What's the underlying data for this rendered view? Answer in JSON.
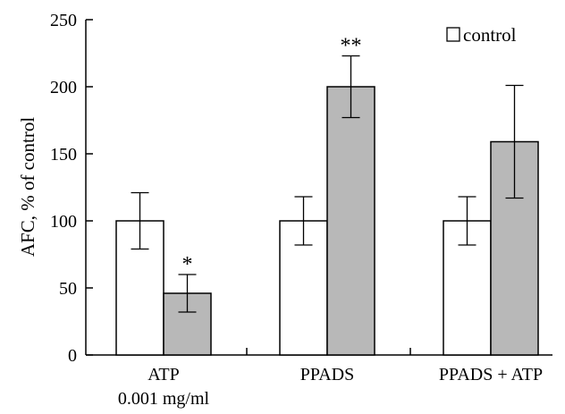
{
  "chart_data": {
    "type": "bar",
    "title": "",
    "xlabel": "",
    "ylabel": "AFC, % of control",
    "ylim": [
      0,
      250
    ],
    "yticks": [
      0,
      50,
      100,
      150,
      200,
      250
    ],
    "categories": [
      [
        "ATP",
        "0.001 mg/ml"
      ],
      [
        "PPADS"
      ],
      [
        "PPADS + ATP"
      ]
    ],
    "series": [
      {
        "name": "control",
        "color": "#ffffff",
        "values": [
          100,
          100,
          100
        ],
        "error": [
          21,
          18,
          18
        ],
        "significance": [
          "",
          "",
          ""
        ]
      },
      {
        "name": "",
        "color": "#b8b8b8",
        "values": [
          46,
          200,
          159
        ],
        "error": [
          14,
          23,
          42
        ],
        "significance": [
          "*",
          "**",
          ""
        ]
      }
    ],
    "legend": {
      "placement": "top-right"
    },
    "grid": false
  }
}
